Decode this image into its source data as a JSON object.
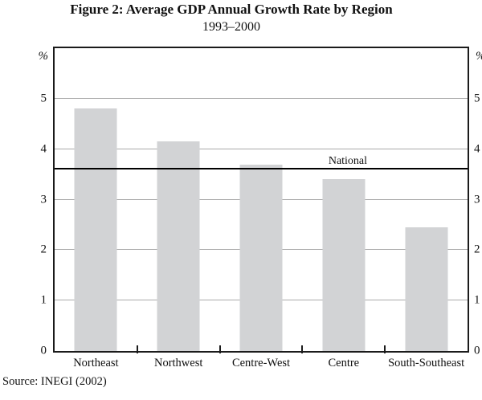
{
  "chart_data": {
    "type": "bar",
    "title": "Figure 2: Average GDP Annual Growth Rate by Region",
    "subtitle": "1993–2000",
    "y_unit": "%",
    "categories": [
      "Northeast",
      "Northwest",
      "Centre-West",
      "Centre",
      "South-Southeast"
    ],
    "values": [
      4.8,
      4.15,
      3.7,
      3.4,
      2.45
    ],
    "reference_line": {
      "label": "National",
      "value": 3.6
    },
    "ylim": [
      0,
      6
    ],
    "yticks": [
      0,
      1,
      2,
      3,
      4,
      5
    ],
    "grid": true,
    "legend": "none",
    "bar_color": "#d2d3d5",
    "gridline_color": "#a9a9a9",
    "axis_color": "#1b1b1b",
    "source": "Source: INEGI (2002)"
  }
}
